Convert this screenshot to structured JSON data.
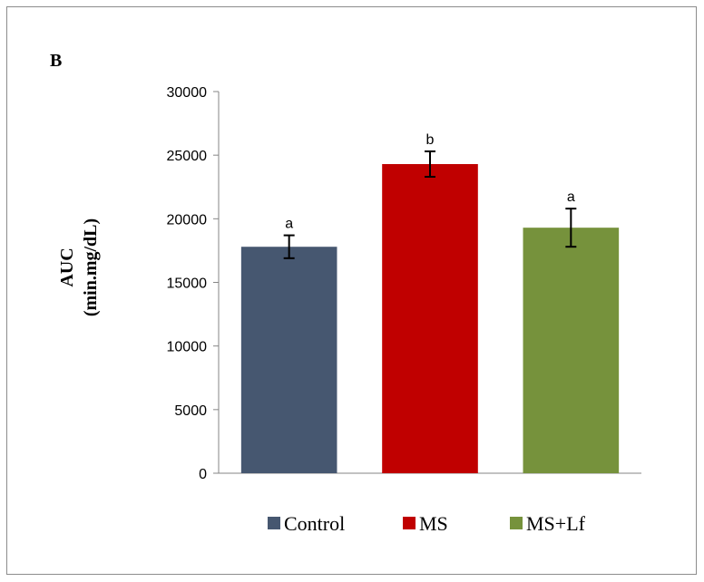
{
  "panel_label": "B",
  "chart_data": {
    "type": "bar",
    "categories": [
      "Control",
      "MS",
      "MS+Lf"
    ],
    "series": [
      {
        "values": [
          17800,
          24300,
          19300
        ],
        "errors": [
          900,
          1000,
          1500
        ],
        "colors": [
          "#465770",
          "#c00000",
          "#76923c"
        ],
        "annotations": [
          "a",
          "b",
          "a"
        ]
      }
    ],
    "ylabel_line1": "AUC",
    "ylabel_line2": "(min.mg/dL)",
    "xlabel": "",
    "ylim": [
      0,
      30000
    ],
    "yticks": [
      0,
      5000,
      10000,
      15000,
      20000,
      25000,
      30000
    ],
    "grid": false,
    "legend_position": "bottom"
  }
}
